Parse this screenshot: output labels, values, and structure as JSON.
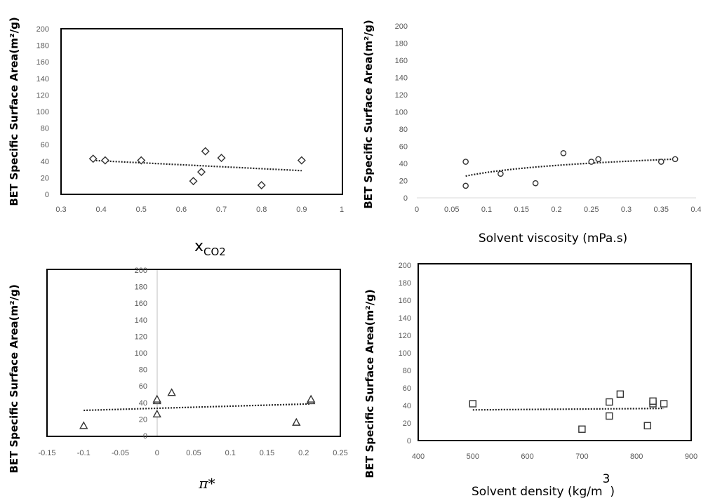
{
  "chart_data": [
    {
      "type": "scatter",
      "ylabel": "BET Specific Surface Area(m²/g)",
      "xlabel_main": "x",
      "xlabel_sub": "CO2",
      "xlim": [
        0.3,
        1
      ],
      "ylim": [
        0,
        200
      ],
      "x_ticks": [
        "0.3",
        "0.4",
        "0.5",
        "0.6",
        "0.7",
        "0.8",
        "0.9",
        "1"
      ],
      "y_ticks": [
        "0",
        "20",
        "40",
        "60",
        "80",
        "100",
        "120",
        "140",
        "160",
        "180",
        "200"
      ],
      "marker": "diamond",
      "trendline": "linear",
      "points": [
        {
          "x": 0.38,
          "y": 43
        },
        {
          "x": 0.41,
          "y": 41
        },
        {
          "x": 0.5,
          "y": 41
        },
        {
          "x": 0.63,
          "y": 16
        },
        {
          "x": 0.65,
          "y": 27
        },
        {
          "x": 0.66,
          "y": 52
        },
        {
          "x": 0.7,
          "y": 44
        },
        {
          "x": 0.8,
          "y": 11
        },
        {
          "x": 0.9,
          "y": 41
        }
      ]
    },
    {
      "type": "scatter",
      "ylabel": "BET Specific Surface Area(m²/g)",
      "xlabel": "Solvent viscosity (mPa.s)",
      "xlim": [
        0,
        0.4
      ],
      "ylim": [
        0,
        200
      ],
      "x_ticks": [
        "0",
        "0.05",
        "0.1",
        "0.15",
        "0.2",
        "0.25",
        "0.3",
        "0.35",
        "0.4"
      ],
      "y_ticks": [
        "0",
        "20",
        "40",
        "60",
        "80",
        "100",
        "120",
        "140",
        "160",
        "180",
        "200"
      ],
      "marker": "circle",
      "trendline": "logarithmic",
      "points": [
        {
          "x": 0.07,
          "y": 42
        },
        {
          "x": 0.07,
          "y": 14
        },
        {
          "x": 0.12,
          "y": 28
        },
        {
          "x": 0.17,
          "y": 17
        },
        {
          "x": 0.21,
          "y": 52
        },
        {
          "x": 0.25,
          "y": 42
        },
        {
          "x": 0.26,
          "y": 45
        },
        {
          "x": 0.35,
          "y": 42
        },
        {
          "x": 0.37,
          "y": 45
        }
      ]
    },
    {
      "type": "scatter",
      "ylabel": "BET Specific Surface Area(m²/g)",
      "xlabel": "π*",
      "xlim": [
        -0.15,
        0.25
      ],
      "ylim": [
        0,
        200
      ],
      "x_ticks": [
        "-0.15",
        "-0.1",
        "-0.05",
        "0",
        "0.05",
        "0.1",
        "0.15",
        "0.2",
        "0.25"
      ],
      "y_ticks": [
        "0",
        "20",
        "40",
        "60",
        "80",
        "100",
        "120",
        "140",
        "160",
        "180",
        "200"
      ],
      "marker": "triangle",
      "trendline": "linear",
      "points": [
        {
          "x": -0.1,
          "y": 12
        },
        {
          "x": 0,
          "y": 26
        },
        {
          "x": 0,
          "y": 42
        },
        {
          "x": 0,
          "y": 44
        },
        {
          "x": 0.02,
          "y": 52
        },
        {
          "x": 0.19,
          "y": 16
        },
        {
          "x": 0.21,
          "y": 42
        },
        {
          "x": 0.21,
          "y": 44
        }
      ]
    },
    {
      "type": "scatter",
      "ylabel": "BET Specific Surface Area(m²/g)",
      "xlabel_main": "Solvent density (kg/m",
      "xlabel_sup": "3",
      "xlabel_end": ")",
      "xlim": [
        400,
        900
      ],
      "ylim": [
        0,
        200
      ],
      "x_ticks": [
        "400",
        "500",
        "600",
        "700",
        "800",
        "900"
      ],
      "y_ticks": [
        "0",
        "20",
        "40",
        "60",
        "80",
        "100",
        "120",
        "140",
        "160",
        "180",
        "200"
      ],
      "marker": "square",
      "trendline": "linear",
      "points": [
        {
          "x": 500,
          "y": 42
        },
        {
          "x": 700,
          "y": 13
        },
        {
          "x": 750,
          "y": 28
        },
        {
          "x": 750,
          "y": 44
        },
        {
          "x": 770,
          "y": 53
        },
        {
          "x": 820,
          "y": 17
        },
        {
          "x": 830,
          "y": 42
        },
        {
          "x": 830,
          "y": 45
        },
        {
          "x": 850,
          "y": 42
        }
      ]
    }
  ]
}
